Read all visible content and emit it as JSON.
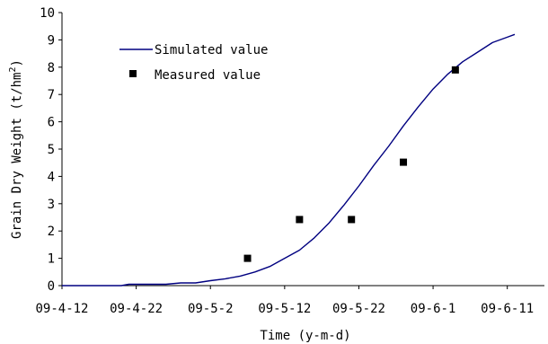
{
  "chart_data": {
    "type": "line",
    "xlabel": "Time (y-m-d)",
    "ylabel": "Grain Dry Weight (t/hm",
    "ylabel_sup": "2",
    "ylabel_end": ")",
    "ylim": [
      0,
      10
    ],
    "yticks": [
      "0",
      "1",
      "2",
      "3",
      "4",
      "5",
      "6",
      "7",
      "8",
      "9",
      "10"
    ],
    "xlim": [
      "2009-04-12",
      "2009-06-16"
    ],
    "xticks": [
      {
        "date": "2009-04-12",
        "label": "09-4-12"
      },
      {
        "date": "2009-04-22",
        "label": "09-4-22"
      },
      {
        "date": "2009-05-02",
        "label": "09-5-2"
      },
      {
        "date": "2009-05-12",
        "label": "09-5-12"
      },
      {
        "date": "2009-05-22",
        "label": "09-5-22"
      },
      {
        "date": "2009-06-01",
        "label": "09-6-1"
      },
      {
        "date": "2009-06-11",
        "label": "09-6-11"
      }
    ],
    "legend_position": "top-left",
    "series": [
      {
        "name": "Simulated value",
        "style": "line",
        "color": "#000080",
        "points": [
          [
            "2009-04-12",
            0
          ],
          [
            "2009-04-20",
            0
          ],
          [
            "2009-04-21",
            0.05
          ],
          [
            "2009-04-26",
            0.05
          ],
          [
            "2009-04-28",
            0.1
          ],
          [
            "2009-04-30",
            0.1
          ],
          [
            "2009-05-02",
            0.18
          ],
          [
            "2009-05-04",
            0.25
          ],
          [
            "2009-05-06",
            0.35
          ],
          [
            "2009-05-08",
            0.5
          ],
          [
            "2009-05-10",
            0.7
          ],
          [
            "2009-05-12",
            1.0
          ],
          [
            "2009-05-14",
            1.3
          ],
          [
            "2009-05-16",
            1.75
          ],
          [
            "2009-05-18",
            2.3
          ],
          [
            "2009-05-20",
            2.95
          ],
          [
            "2009-05-22",
            3.65
          ],
          [
            "2009-05-24",
            4.4
          ],
          [
            "2009-05-26",
            5.1
          ],
          [
            "2009-05-28",
            5.85
          ],
          [
            "2009-05-30",
            6.55
          ],
          [
            "2009-06-01",
            7.2
          ],
          [
            "2009-06-03",
            7.75
          ],
          [
            "2009-06-05",
            8.2
          ],
          [
            "2009-06-07",
            8.55
          ],
          [
            "2009-06-09",
            8.9
          ],
          [
            "2009-06-11",
            9.1
          ],
          [
            "2009-06-12",
            9.2
          ]
        ]
      },
      {
        "name": "Measured value",
        "style": "marker",
        "color": "#000000",
        "points": [
          [
            "2009-05-07",
            1.0
          ],
          [
            "2009-05-14",
            2.42
          ],
          [
            "2009-05-21",
            2.42
          ],
          [
            "2009-05-28",
            4.52
          ],
          [
            "2009-06-04",
            7.9
          ]
        ]
      }
    ]
  }
}
